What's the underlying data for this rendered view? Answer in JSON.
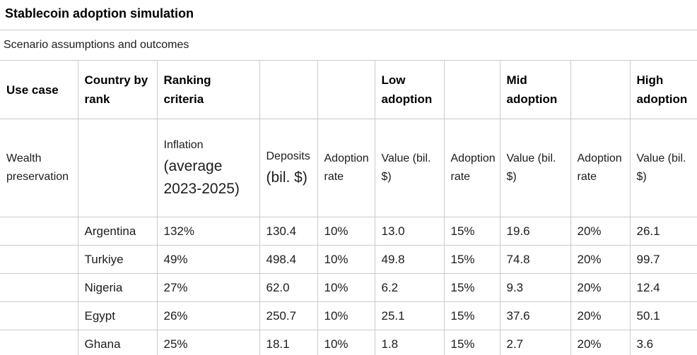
{
  "page": {
    "title": "Stablecoin adoption simulation",
    "subtitle": "Scenario assumptions and outcomes"
  },
  "colors": {
    "border": "#cbcbcb",
    "text": "#1c1c1c",
    "background": "#ffffff"
  },
  "table": {
    "header_row1": {
      "use_case": "Use case",
      "country_by_rank": "Country by rank",
      "ranking_criteria": "Ranking criteria",
      "low_adoption": "Low adoption",
      "mid_adoption": "Mid adoption",
      "high_adoption": "High adoption"
    },
    "header_row2": {
      "use_case": "Wealth preservation",
      "ranking_criteria_small": "Inflation",
      "ranking_criteria_large": "(average 2023-2025)",
      "deposits_small": "Deposits",
      "deposits_large": "(bil. $)",
      "adoption_rate": "Adoption rate",
      "value": "Value (bil. $)"
    },
    "rows": [
      {
        "country": "Argentina",
        "inflation": "132%",
        "deposits": "130.4",
        "low_rate": "10%",
        "low_value": "13.0",
        "mid_rate": "15%",
        "mid_value": "19.6",
        "high_rate": "20%",
        "high_value": "26.1"
      },
      {
        "country": "Turkiye",
        "inflation": "49%",
        "deposits": "498.4",
        "low_rate": "10%",
        "low_value": "49.8",
        "mid_rate": "15%",
        "mid_value": "74.8",
        "high_rate": "20%",
        "high_value": "99.7"
      },
      {
        "country": "Nigeria",
        "inflation": "27%",
        "deposits": "62.0",
        "low_rate": "10%",
        "low_value": "6.2",
        "mid_rate": "15%",
        "mid_value": "9.3",
        "high_rate": "20%",
        "high_value": "12.4"
      },
      {
        "country": "Egypt",
        "inflation": "26%",
        "deposits": "250.7",
        "low_rate": "10%",
        "low_value": "25.1",
        "mid_rate": "15%",
        "mid_value": "37.6",
        "high_rate": "20%",
        "high_value": "50.1"
      },
      {
        "country": "Ghana",
        "inflation": "25%",
        "deposits": "18.1",
        "low_rate": "10%",
        "low_value": "1.8",
        "mid_rate": "15%",
        "mid_value": "2.7",
        "high_rate": "20%",
        "high_value": "3.6"
      }
    ]
  }
}
